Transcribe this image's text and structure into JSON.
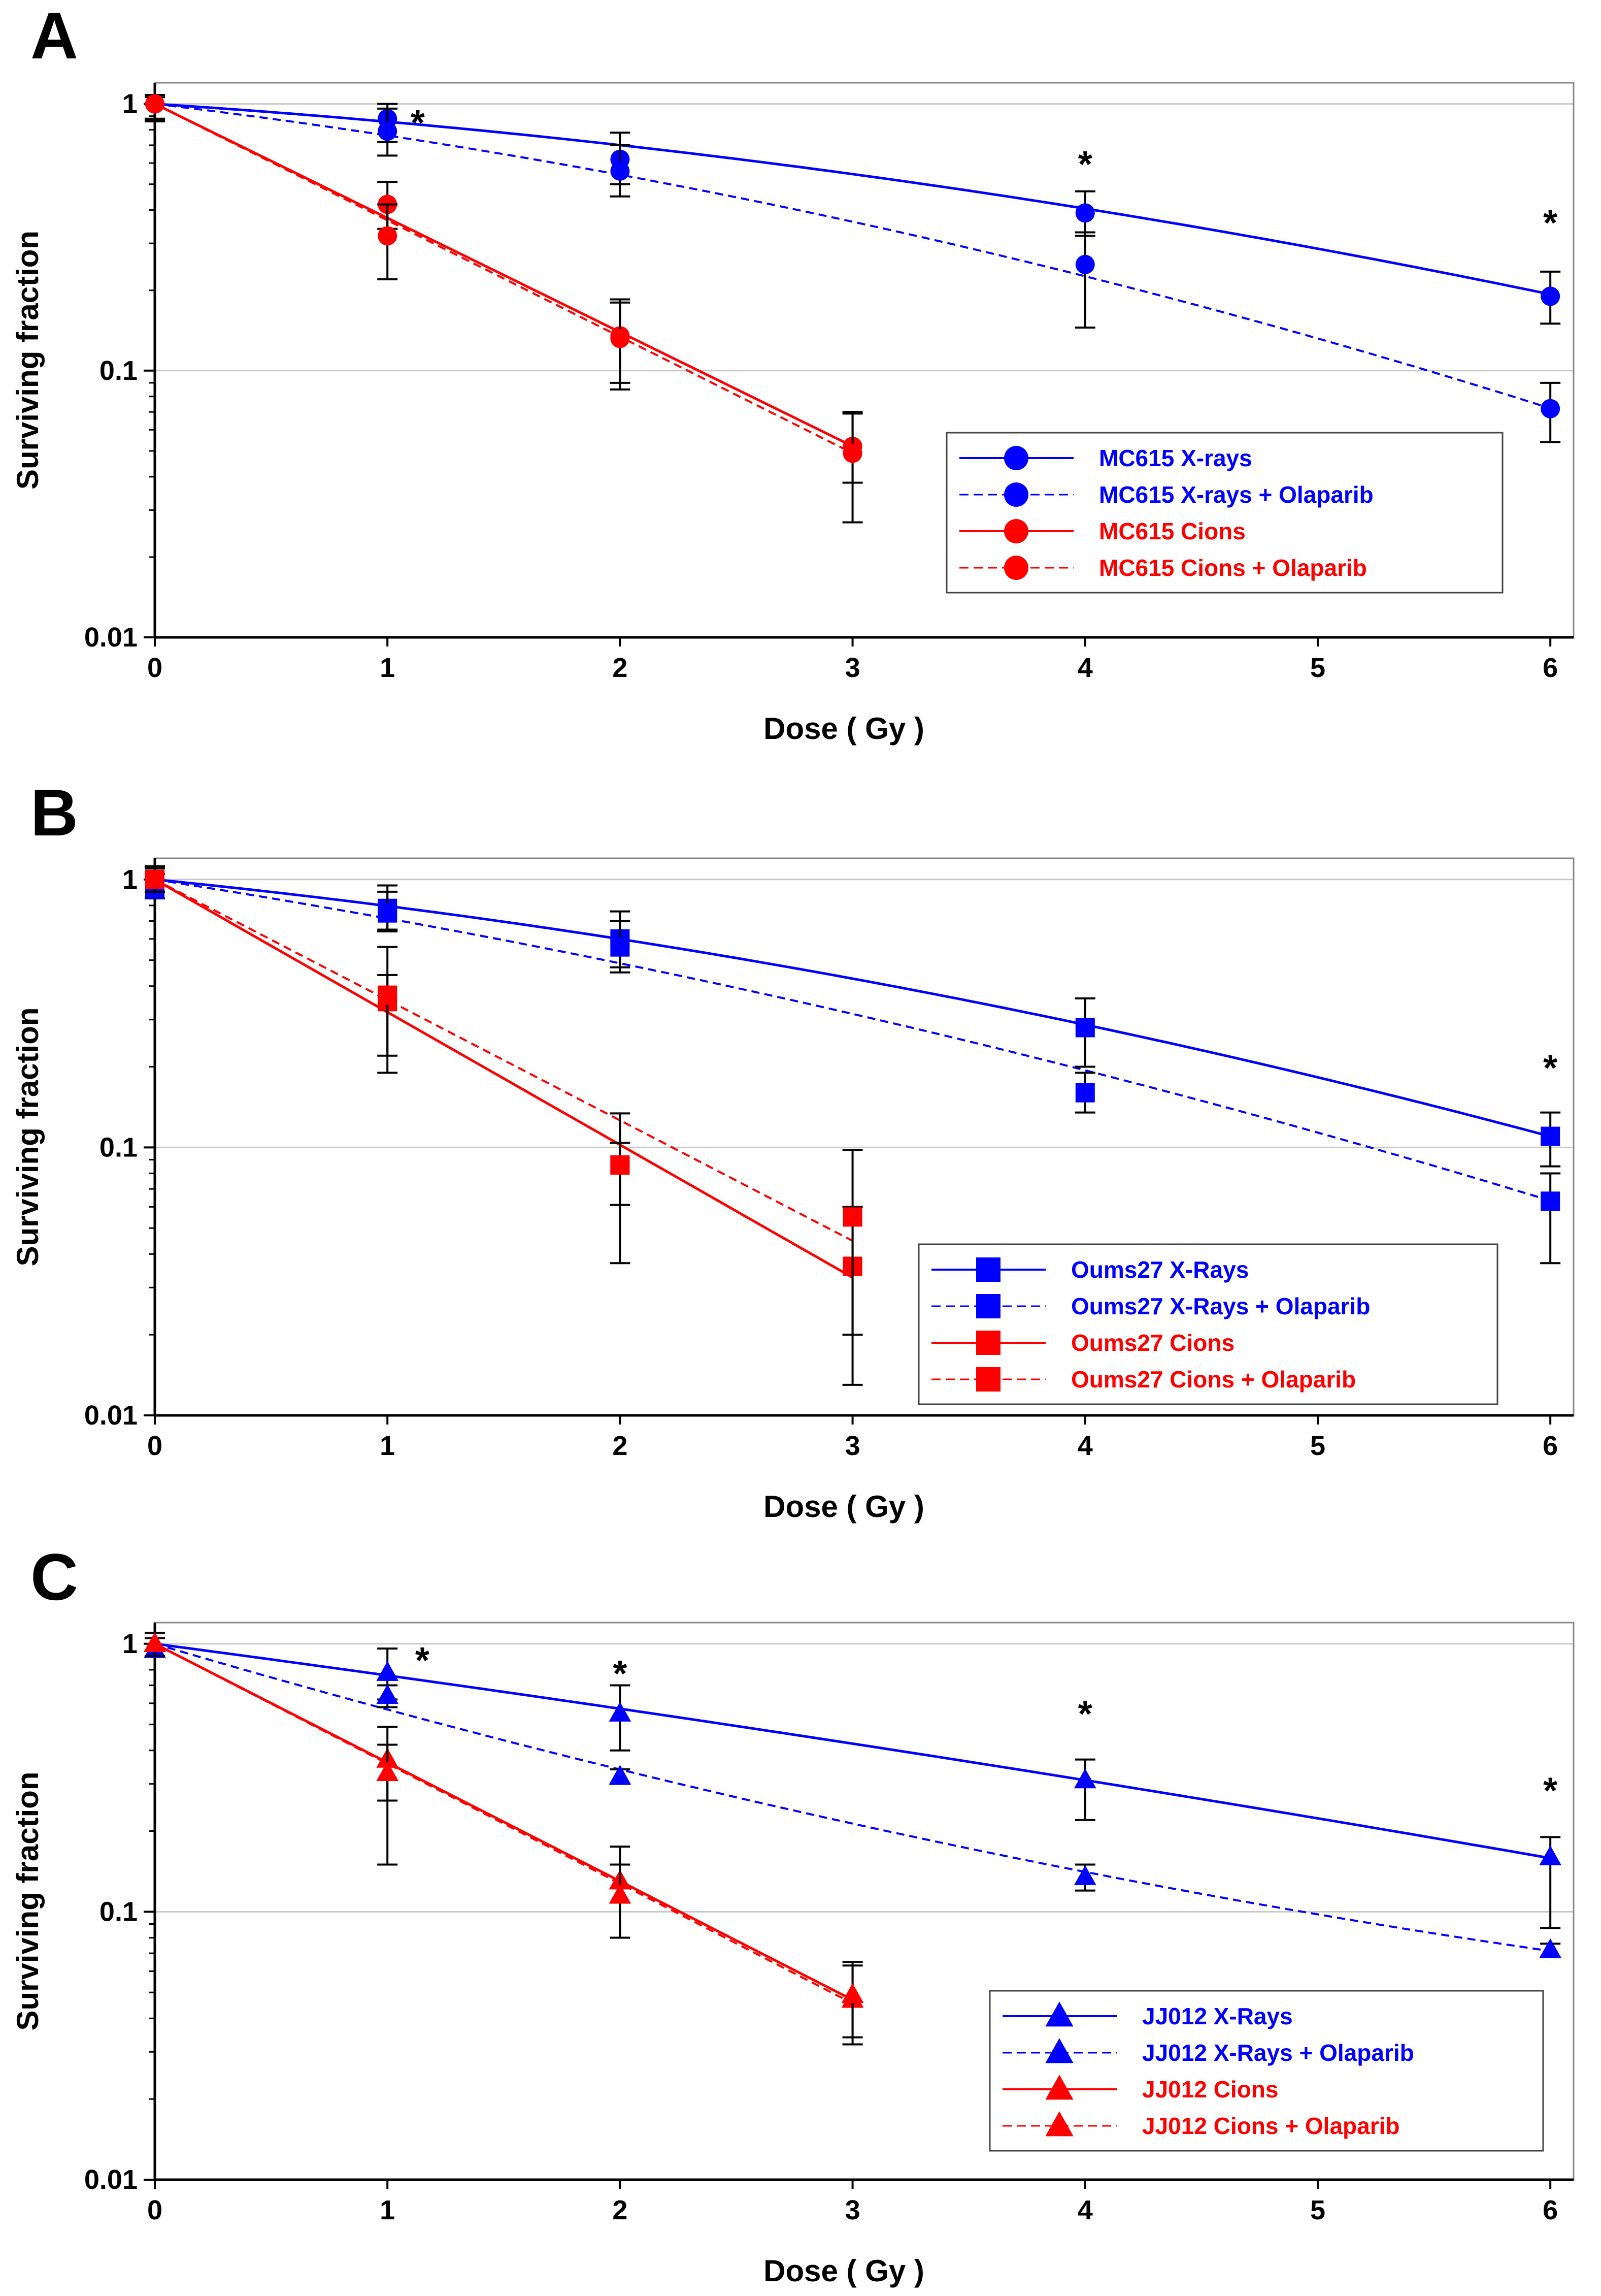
{
  "colors": {
    "blue": "#0000ff",
    "red": "#ff0000",
    "black": "#000000",
    "grid": "#c8c8c8"
  },
  "chart_data": [
    {
      "type": "scatter",
      "panel": "A",
      "title": "",
      "xlabel": "Dose ( Gy )",
      "ylabel": "Surviving fraction",
      "yscale": "log",
      "xlim": [
        0,
        6.1
      ],
      "ylim": [
        0.01,
        1.2
      ],
      "xticks": [
        "0",
        "1",
        "2",
        "3",
        "4",
        "5",
        "6"
      ],
      "yticks": [
        "0.01",
        "0.1",
        "1"
      ],
      "marker": "circle",
      "legend_position": "lower-right",
      "series": [
        {
          "name": "MC615 X-rays",
          "color": "#0000ff",
          "line": "solid",
          "x": [
            0,
            1,
            2,
            4,
            6
          ],
          "y": [
            1.0,
            0.88,
            0.62,
            0.39,
            0.19
          ],
          "err_lo": [
            0.86,
            0.72,
            0.5,
            0.32,
            0.15
          ],
          "err_hi": [
            1.08,
            1.0,
            0.78,
            0.47,
            0.235
          ],
          "fit": {
            "alpha": 0.13,
            "beta": 0.024,
            "xmax": 6
          }
        },
        {
          "name": "MC615 X-rays + Olaparib",
          "color": "#0000ff",
          "line": "dashed",
          "x": [
            0,
            1,
            2,
            4,
            6
          ],
          "y": [
            1.0,
            0.79,
            0.56,
            0.25,
            0.072
          ],
          "err_lo": [
            0.86,
            0.64,
            0.45,
            0.145,
            0.054
          ],
          "err_hi": [
            1.08,
            0.96,
            0.7,
            0.33,
            0.09
          ],
          "fit": {
            "alpha": 0.24,
            "beta": 0.033,
            "xmax": 6
          }
        },
        {
          "name": "MC615 Cions",
          "color": "#ff0000",
          "line": "solid",
          "x": [
            0,
            1,
            2,
            3
          ],
          "y": [
            1.0,
            0.42,
            0.135,
            0.052
          ],
          "err_lo": [
            0.88,
            0.34,
            0.09,
            0.038
          ],
          "err_hi": [
            1.08,
            0.51,
            0.18,
            0.069
          ],
          "fit": {
            "alpha": 0.985,
            "beta": 0,
            "xmax": 3
          }
        },
        {
          "name": "MC615 Cions + Olaparib",
          "color": "#ff0000",
          "line": "dashed",
          "x": [
            0,
            1,
            2,
            3
          ],
          "y": [
            1.0,
            0.32,
            0.132,
            0.049
          ],
          "err_lo": [
            0.87,
            0.22,
            0.085,
            0.027
          ],
          "err_hi": [
            1.06,
            0.42,
            0.185,
            0.07
          ],
          "fit": {
            "alpha": 1.005,
            "beta": 0,
            "xmax": 3
          }
        }
      ],
      "annotations": [
        {
          "text": "*",
          "x": 1.13,
          "y": 0.9
        },
        {
          "text": "*",
          "x": 4,
          "y": 0.63
        },
        {
          "text": "*",
          "x": 6,
          "y": 0.38
        }
      ]
    },
    {
      "type": "scatter",
      "panel": "B",
      "title": "",
      "xlabel": "Dose ( Gy )",
      "ylabel": "Surviving fraction",
      "yscale": "log",
      "xlim": [
        0,
        6.1
      ],
      "ylim": [
        0.01,
        1.2
      ],
      "xticks": [
        "0",
        "1",
        "2",
        "3",
        "4",
        "5",
        "6"
      ],
      "yticks": [
        "0.01",
        "0.1",
        "1"
      ],
      "marker": "square",
      "legend_position": "lower-right",
      "series": [
        {
          "name": "Oums27 X-Rays",
          "color": "#0000ff",
          "line": "solid",
          "x": [
            0,
            1,
            2,
            4,
            6
          ],
          "y": [
            1.0,
            0.78,
            0.6,
            0.28,
            0.11
          ],
          "err_lo": [
            0.85,
            0.65,
            0.47,
            0.2,
            0.085
          ],
          "err_hi": [
            1.1,
            0.95,
            0.76,
            0.36,
            0.135
          ],
          "fit": {
            "alpha": 0.2,
            "beta": 0.028,
            "xmax": 6
          }
        },
        {
          "name": "Oums27 X-Rays + Olaparib",
          "color": "#0000ff",
          "line": "dashed",
          "x": [
            0,
            1,
            2,
            4,
            6
          ],
          "y": [
            0.92,
            0.75,
            0.56,
            0.16,
            0.063
          ],
          "err_lo": [
            0.85,
            0.64,
            0.45,
            0.135,
            0.037
          ],
          "err_hi": [
            1.05,
            0.9,
            0.7,
            0.19,
            0.08
          ],
          "fit": {
            "alpha": 0.31,
            "beta": 0.025,
            "xmax": 6
          }
        },
        {
          "name": "Oums27 Cions",
          "color": "#ff0000",
          "line": "solid",
          "x": [
            0,
            1,
            2,
            3
          ],
          "y": [
            1.0,
            0.35,
            0.086,
            0.036
          ],
          "err_lo": [
            0.9,
            0.19,
            0.061,
            0.02
          ],
          "err_hi": [
            1.12,
            0.44,
            0.104,
            0.06
          ],
          "fit": {
            "alpha": 1.14,
            "beta": 0,
            "xmax": 3
          }
        },
        {
          "name": "Oums27 Cions + Olaparib",
          "color": "#ff0000",
          "line": "dashed",
          "x": [
            0,
            1,
            2,
            3
          ],
          "y": [
            1.0,
            0.37,
            0.086,
            0.055
          ],
          "err_lo": [
            0.9,
            0.22,
            0.037,
            0.013
          ],
          "err_hi": [
            1.12,
            0.56,
            0.134,
            0.098
          ],
          "fit": {
            "alpha": 1.035,
            "beta": 0,
            "xmax": 3
          }
        }
      ],
      "annotations": [
        {
          "text": "*",
          "x": 6,
          "y": 0.21
        }
      ]
    },
    {
      "type": "scatter",
      "panel": "C",
      "title": "",
      "xlabel": "Dose ( Gy )",
      "ylabel": "Surviving fraction",
      "yscale": "log",
      "xlim": [
        0,
        6.1
      ],
      "ylim": [
        0.01,
        1.2
      ],
      "xticks": [
        "0",
        "1",
        "2",
        "3",
        "4",
        "5",
        "6"
      ],
      "yticks": [
        "0.01",
        "0.1",
        "1"
      ],
      "marker": "triangle",
      "legend_position": "lower-right",
      "series": [
        {
          "name": "JJ012 X-Rays",
          "color": "#0000ff",
          "line": "solid",
          "x": [
            0,
            1,
            2,
            4,
            6
          ],
          "y": [
            1.0,
            0.78,
            0.55,
            0.31,
            0.16
          ],
          "err_lo": [
            0.9,
            0.62,
            0.4,
            0.22,
            0.087
          ],
          "err_hi": [
            1.1,
            0.96,
            0.7,
            0.37,
            0.19
          ],
          "fit": {
            "alpha": 0.265,
            "beta": 0.007,
            "xmax": 6
          }
        },
        {
          "name": "JJ012 X-Rays + Olaparib",
          "color": "#0000ff",
          "line": "dashed",
          "x": [
            0,
            1,
            2,
            4,
            6
          ],
          "y": [
            0.95,
            0.64,
            0.32,
            0.135,
            0.072
          ],
          "err_lo": [
            0.9,
            0.58,
            0.3,
            0.12,
            0.068
          ],
          "err_hi": [
            1.05,
            0.7,
            0.34,
            0.15,
            0.076
          ],
          "fit": {
            "alpha": 0.59,
            "beta": -0.025,
            "xmax": 6
          }
        },
        {
          "name": "JJ012 Cions",
          "color": "#ff0000",
          "line": "solid",
          "x": [
            0,
            1,
            2,
            3
          ],
          "y": [
            1.0,
            0.37,
            0.13,
            0.047
          ],
          "err_lo": [
            0.9,
            0.15,
            0.08,
            0.032
          ],
          "err_hi": [
            1.1,
            0.49,
            0.175,
            0.063
          ],
          "fit": {
            "alpha": 1.02,
            "beta": 0,
            "xmax": 3
          }
        },
        {
          "name": "JJ012 Cions  + Olaparib",
          "color": "#ff0000",
          "line": "dashed",
          "x": [
            0,
            1,
            2,
            3
          ],
          "y": [
            1.0,
            0.33,
            0.115,
            0.049
          ],
          "err_lo": [
            0.9,
            0.26,
            0.08,
            0.034
          ],
          "err_hi": [
            1.1,
            0.42,
            0.15,
            0.065
          ],
          "fit": {
            "alpha": 1.03,
            "beta": 0,
            "xmax": 3
          }
        }
      ],
      "annotations": [
        {
          "text": "*",
          "x": 1.15,
          "y": 0.92
        },
        {
          "text": "*",
          "x": 2,
          "y": 0.82
        },
        {
          "text": "*",
          "x": 4,
          "y": 0.58
        },
        {
          "text": "*",
          "x": 6,
          "y": 0.3
        }
      ]
    }
  ]
}
